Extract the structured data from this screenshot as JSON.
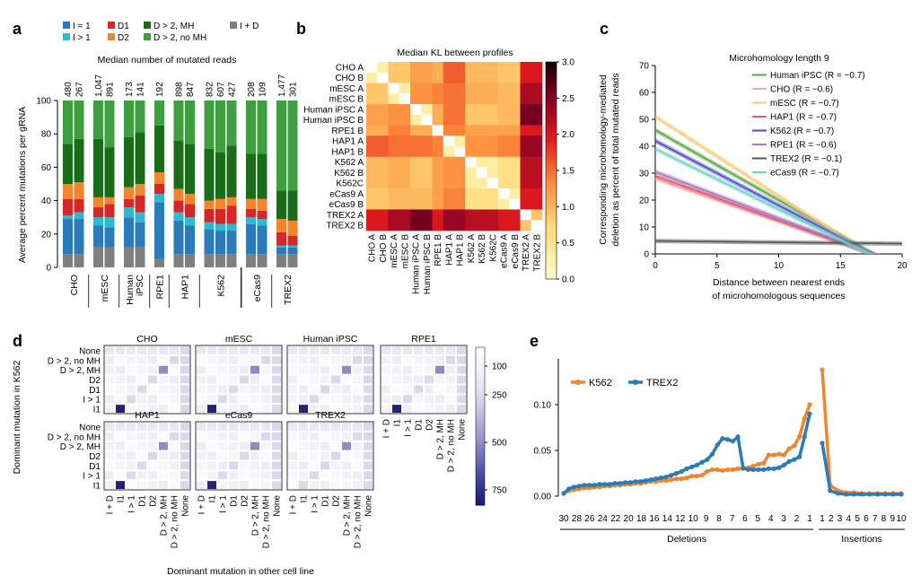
{
  "panel_labels": [
    "a",
    "b",
    "c",
    "d",
    "e"
  ],
  "colors": {
    "I1": "#2b7bba",
    "Igt1": "#2bbad0",
    "D1": "#d62728",
    "D2": "#f0852d",
    "D2MH": "#1a6b1a",
    "D2noMH": "#3f9e3f",
    "IplusD": "#7f7f7f"
  },
  "chart_data": [
    {
      "panel": "a",
      "type": "bar",
      "title": "Median number of mutated reads",
      "ylabel": "Average percent mutations per gRNA",
      "ylim": [
        0,
        100
      ],
      "yticks": [
        0,
        20,
        40,
        60,
        80,
        100
      ],
      "legend": [
        "I = 1",
        "I > 1",
        "D1",
        "D2",
        "D > 2, MH",
        "D > 2, no MH",
        "I + D"
      ],
      "groups": [
        "CHO",
        "mESC",
        "Human\niPSC",
        "RPE1",
        "HAP1",
        "K562",
        "eCas9",
        "TREX2"
      ],
      "bar_group_index": [
        0,
        0,
        1,
        1,
        2,
        2,
        3,
        4,
        4,
        5,
        5,
        5,
        6,
        6,
        7,
        7
      ],
      "top_labels": [
        "480",
        "267",
        "1,047",
        "891",
        "173",
        "141",
        "192",
        "898",
        "847",
        "832",
        "607",
        "427",
        "208",
        "109",
        "1,477",
        "301"
      ],
      "series": [
        {
          "name": "I + D",
          "values": [
            8,
            8,
            12,
            12,
            12,
            12,
            5,
            8,
            8,
            8,
            8,
            8,
            8,
            8,
            8,
            8
          ]
        },
        {
          "name": "I = 1",
          "values": [
            21,
            21,
            13,
            12,
            18,
            15,
            34,
            20,
            17,
            15,
            14,
            14,
            18,
            17,
            4,
            4
          ]
        },
        {
          "name": "I > 1",
          "values": [
            2,
            4,
            5,
            6,
            6,
            6,
            5,
            5,
            5,
            4,
            4,
            4,
            4,
            4,
            1,
            1
          ]
        },
        {
          "name": "D1",
          "values": [
            10,
            8,
            6,
            8,
            5,
            10,
            6,
            7,
            8,
            8,
            9,
            11,
            5,
            5,
            8,
            6
          ]
        },
        {
          "name": "D2",
          "values": [
            9,
            10,
            6,
            4,
            7,
            7,
            7,
            7,
            6,
            5,
            6,
            5,
            6,
            7,
            8,
            9
          ]
        },
        {
          "name": "D > 2, MH",
          "values": [
            24,
            26,
            35,
            30,
            30,
            31,
            28,
            29,
            30,
            31,
            28,
            31,
            27,
            27,
            17,
            18
          ]
        },
        {
          "name": "D > 2, no MH",
          "values": [
            26,
            23,
            23,
            28,
            22,
            19,
            15,
            24,
            26,
            29,
            31,
            27,
            32,
            32,
            54,
            54
          ]
        }
      ]
    },
    {
      "panel": "b",
      "type": "heatmap",
      "title": "Median KL between profiles",
      "labels": [
        "CHO A",
        "CHO B",
        "mESC A",
        "mESC B",
        "Human iPSC A",
        "Human iPSC B",
        "RPE1 B",
        "HAP1 A",
        "HAP1 B",
        "K562 A",
        "K562 B",
        "K562C",
        "eCas9 A",
        "eCas9 B",
        "TREX2 A",
        "TREX2 B"
      ],
      "colorbar_ticks": [
        "0.0",
        "0.5",
        "1.0",
        "1.5",
        "2.0",
        "2.5",
        "3.0"
      ],
      "colorbar_range": [
        0,
        3
      ]
    },
    {
      "panel": "c",
      "type": "line",
      "title": "Microhomology length 9",
      "xlabel": "Distance between nearest ends\nof microhomologous sequences",
      "ylabel": "Corresponding microhomology-mediated\ndeletion as percent of total mutated reads",
      "xlim": [
        0,
        20
      ],
      "ylim": [
        0,
        70
      ],
      "xticks": [
        0,
        5,
        10,
        15,
        20
      ],
      "yticks": [
        0,
        10,
        20,
        30,
        40,
        50,
        60,
        70
      ],
      "series": [
        {
          "name": "Human iPSC",
          "r": "(R = −0.7)",
          "color": "#5aa843",
          "y0": 46,
          "y20": -6
        },
        {
          "name": "CHO",
          "r": "(R = −0.6)",
          "color": "#f5a8a8",
          "y0": 28,
          "y20": -4
        },
        {
          "name": "mESC",
          "r": "(R = −0.7)",
          "color": "#f9c87a",
          "y0": 51,
          "y20": -8
        },
        {
          "name": "HAP1",
          "r": "(R = −0.7)",
          "color": "#e85a6a",
          "y0": 29,
          "y20": -4
        },
        {
          "name": "K562",
          "r": "(R = −0.7)",
          "color": "#4a4ad0",
          "y0": 42,
          "y20": -6
        },
        {
          "name": "RPE1",
          "r": "(R = −0.6)",
          "color": "#a678c8",
          "y0": 30.5,
          "y20": -4
        },
        {
          "name": "TREX2",
          "r": "(R = −0.1)",
          "color": "#555555",
          "y0": 4.8,
          "y20": 3.8
        },
        {
          "name": "eCas9",
          "r": "(R = −0.7)",
          "color": "#6fd3c8",
          "y0": 39,
          "y20": -6
        }
      ]
    },
    {
      "panel": "d",
      "type": "heatmap",
      "ylabel": "Dominant mutation in K562",
      "xlabel": "Dominant mutation in other cell line",
      "row_labels": [
        "None",
        "D > 2, no MH",
        "D > 2, MH",
        "D2",
        "D1",
        "I > 1",
        "I1"
      ],
      "col_labels": [
        "I + D",
        "I1",
        "I > 1",
        "D1",
        "D2",
        "D > 2, MH",
        "D > 2, no MH",
        "None"
      ],
      "panels": [
        "CHO",
        "mESC",
        "Human iPSC",
        "RPE1",
        "HAP1",
        "eCas9",
        "TREX2"
      ],
      "colorbar_ticks": [
        "100",
        "250",
        "500",
        "750"
      ]
    },
    {
      "panel": "e",
      "type": "line",
      "legend": [
        "K562",
        "TREX2"
      ],
      "yticks": [
        "0.00",
        "0.05",
        "0.10"
      ],
      "ylim": [
        0,
        0.15
      ],
      "deletion_ticks": [
        "30",
        "28",
        "26",
        "24",
        "22",
        "20",
        "18",
        "16",
        "14",
        "12",
        "10",
        "9",
        "8",
        "7",
        "6",
        "5",
        "4",
        "3",
        "2",
        "1"
      ],
      "insertion_ticks": [
        "1",
        "2",
        "3",
        "4",
        "5",
        "6",
        "7",
        "8",
        "9",
        "10"
      ],
      "group_labels": [
        "Deletions",
        "Insertions"
      ],
      "series": [
        {
          "name": "K562",
          "color": "#f0852d",
          "deletions": [
            0.003,
            0.006,
            0.007,
            0.008,
            0.009,
            0.009,
            0.01,
            0.01,
            0.011,
            0.011,
            0.012,
            0.012,
            0.013,
            0.013,
            0.014,
            0.014,
            0.015,
            0.016,
            0.016,
            0.017,
            0.017,
            0.018,
            0.019,
            0.019,
            0.02,
            0.022,
            0.022,
            0.023,
            0.027,
            0.029,
            0.029,
            0.028,
            0.029,
            0.029,
            0.03,
            0.03,
            0.031,
            0.033,
            0.035,
            0.036,
            0.045,
            0.045,
            0.046,
            0.045,
            0.052,
            0.055,
            0.065,
            0.085,
            0.1
          ],
          "insertions": [
            0.138,
            0.012,
            0.006,
            0.004,
            0.004,
            0.003,
            0.003,
            0.003,
            0.003,
            0.003,
            0.003
          ]
        },
        {
          "name": "TREX2",
          "color": "#2b7bba",
          "deletions": [
            0.003,
            0.008,
            0.01,
            0.011,
            0.012,
            0.012,
            0.012,
            0.013,
            0.013,
            0.013,
            0.014,
            0.014,
            0.015,
            0.015,
            0.016,
            0.016,
            0.017,
            0.018,
            0.019,
            0.02,
            0.021,
            0.023,
            0.025,
            0.027,
            0.03,
            0.032,
            0.034,
            0.037,
            0.04,
            0.046,
            0.056,
            0.063,
            0.062,
            0.06,
            0.065,
            0.031,
            0.029,
            0.029,
            0.029,
            0.029,
            0.03,
            0.03,
            0.031,
            0.034,
            0.038,
            0.04,
            0.043,
            0.065,
            0.09
          ],
          "insertions": [
            0.058,
            0.006,
            0.003,
            0.002,
            0.002,
            0.002,
            0.002,
            0.002,
            0.002,
            0.002,
            0.002
          ]
        }
      ]
    }
  ]
}
